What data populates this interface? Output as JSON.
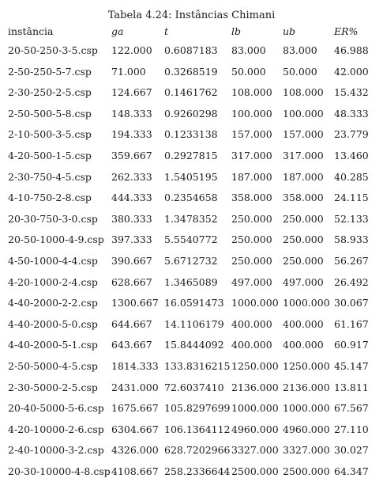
{
  "caption": "Tabela 4.24: Instâncias Chimani",
  "columns": [
    "instância",
    "ga",
    "t",
    "lb",
    "ub",
    "ER%"
  ],
  "rows": [
    [
      "20-50-250-3-5.csp",
      "122.000",
      "0.6087183",
      "83.000",
      "83.000",
      "46.988"
    ],
    [
      "2-50-250-5-7.csp",
      "71.000",
      "0.3268519",
      "50.000",
      "50.000",
      "42.000"
    ],
    [
      "2-30-250-2-5.csp",
      "124.667",
      "0.1461762",
      "108.000",
      "108.000",
      "15.432"
    ],
    [
      "2-50-500-5-8.csp",
      "148.333",
      "0.9260298",
      "100.000",
      "100.000",
      "48.333"
    ],
    [
      "2-10-500-3-5.csp",
      "194.333",
      "0.1233138",
      "157.000",
      "157.000",
      "23.779"
    ],
    [
      "4-20-500-1-5.csp",
      "359.667",
      "0.2927815",
      "317.000",
      "317.000",
      "13.460"
    ],
    [
      "2-30-750-4-5.csp",
      "262.333",
      "1.5405195",
      "187.000",
      "187.000",
      "40.285"
    ],
    [
      "4-10-750-2-8.csp",
      "444.333",
      "0.2354658",
      "358.000",
      "358.000",
      "24.115"
    ],
    [
      "20-30-750-3-0.csp",
      "380.333",
      "1.3478352",
      "250.000",
      "250.000",
      "52.133"
    ],
    [
      "20-50-1000-4-9.csp",
      "397.333",
      "5.5540772",
      "250.000",
      "250.000",
      "58.933"
    ],
    [
      "4-50-1000-4-4.csp",
      "390.667",
      "5.6712732",
      "250.000",
      "250.000",
      "56.267"
    ],
    [
      "4-20-1000-2-4.csp",
      "628.667",
      "1.3465089",
      "497.000",
      "497.000",
      "26.492"
    ],
    [
      "4-40-2000-2-2.csp",
      "1300.667",
      "16.0591473",
      "1000.000",
      "1000.000",
      "30.067"
    ],
    [
      "4-40-2000-5-0.csp",
      "644.667",
      "14.1106179",
      "400.000",
      "400.000",
      "61.167"
    ],
    [
      "4-40-2000-5-1.csp",
      "643.667",
      "15.8444092",
      "400.000",
      "400.000",
      "60.917"
    ],
    [
      "2-50-5000-4-5.csp",
      "1814.333",
      "133.8316215",
      "1250.000",
      "1250.000",
      "45.147"
    ],
    [
      "2-30-5000-2-5.csp",
      "2431.000",
      "72.6037410",
      "2136.000",
      "2136.000",
      "13.811"
    ],
    [
      "20-40-5000-5-6.csp",
      "1675.667",
      "105.8297699",
      "1000.000",
      "1000.000",
      "67.567"
    ],
    [
      "4-20-10000-2-6.csp",
      "6304.667",
      "106.1364112",
      "4960.000",
      "4960.000",
      "27.110"
    ],
    [
      "2-40-10000-3-2.csp",
      "4326.000",
      "628.7202966",
      "3327.000",
      "3327.000",
      "30.027"
    ],
    [
      "20-30-10000-4-8.csp",
      "4108.667",
      "258.2336644",
      "2500.000",
      "2500.000",
      "64.347"
    ]
  ]
}
